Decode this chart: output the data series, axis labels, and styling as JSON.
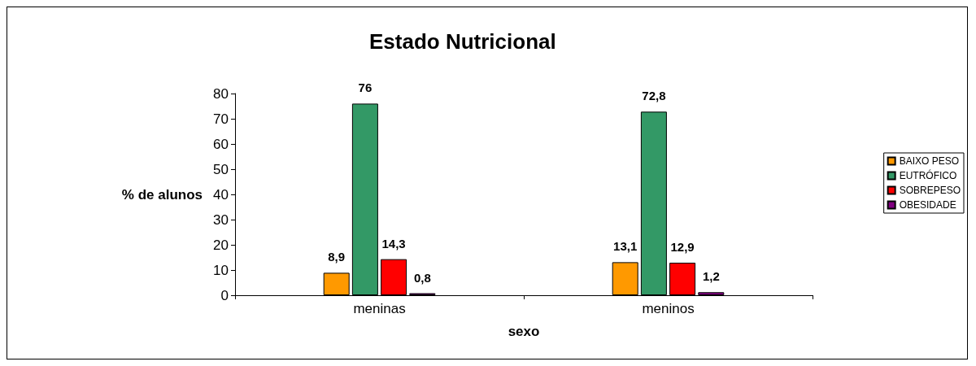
{
  "chart_data": {
    "type": "bar",
    "title": "Estado Nutricional",
    "xlabel": "sexo",
    "ylabel": "% de alunos",
    "categories": [
      "meninas",
      "meninos"
    ],
    "series": [
      {
        "name": "BAIXO PESO",
        "color": "#ff9900",
        "values": [
          8.9,
          13.1
        ],
        "value_labels": [
          "8,9",
          "13,1"
        ]
      },
      {
        "name": "EUTRÓFICO",
        "color": "#339966",
        "values": [
          76,
          72.8
        ],
        "value_labels": [
          "76",
          "72,8"
        ]
      },
      {
        "name": "SOBREPESO",
        "color": "#ff0000",
        "values": [
          14.3,
          12.9
        ],
        "value_labels": [
          "14,3",
          "12,9"
        ]
      },
      {
        "name": "OBESIDADE",
        "color": "#800080",
        "values": [
          0.8,
          1.2
        ],
        "value_labels": [
          "0,8",
          "1,2"
        ]
      }
    ],
    "ylim": [
      0,
      80
    ],
    "yticks": [
      0,
      10,
      20,
      30,
      40,
      50,
      60,
      70,
      80
    ],
    "grid": false,
    "legend": "right"
  }
}
